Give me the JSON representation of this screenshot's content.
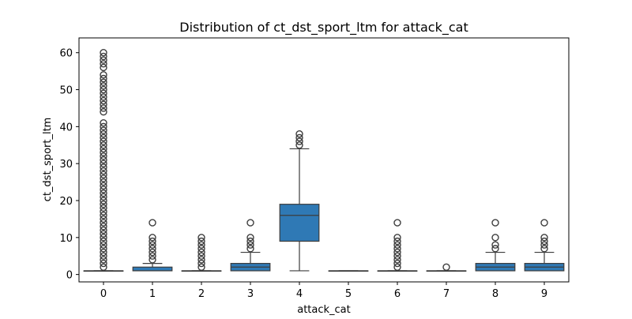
{
  "chart_data": {
    "type": "box",
    "title": "Distribution of ct_dst_sport_ltm for attack_cat",
    "xlabel": "attack_cat",
    "ylabel": "ct_dst_sport_ltm",
    "ylim": [
      -2,
      64
    ],
    "yticks": [
      0,
      10,
      20,
      30,
      40,
      50,
      60
    ],
    "categories": [
      "0",
      "1",
      "2",
      "3",
      "4",
      "5",
      "6",
      "7",
      "8",
      "9"
    ],
    "box_color": "#2f79b5",
    "line_color": "#3d3d3d",
    "boxes": [
      {
        "category": "0",
        "whisker_low": 1,
        "q1": 1,
        "median": 1,
        "q3": 1,
        "whisker_high": 1,
        "outliers": [
          2,
          3,
          4,
          5,
          6,
          7,
          8,
          9,
          10,
          11,
          12,
          13,
          14,
          15,
          16,
          17,
          18,
          19,
          20,
          21,
          22,
          23,
          24,
          25,
          26,
          27,
          28,
          29,
          30,
          31,
          32,
          33,
          34,
          35,
          36,
          37,
          38,
          39,
          40,
          41,
          44,
          45,
          46,
          47,
          48,
          49,
          50,
          51,
          52,
          53,
          54,
          56,
          57,
          58,
          59,
          60
        ]
      },
      {
        "category": "1",
        "whisker_low": 1,
        "q1": 1,
        "median": 1,
        "q3": 2,
        "whisker_high": 3,
        "outliers": [
          4,
          5,
          6,
          7,
          8,
          9,
          10,
          14
        ]
      },
      {
        "category": "2",
        "whisker_low": 1,
        "q1": 1,
        "median": 1,
        "q3": 1,
        "whisker_high": 1,
        "outliers": [
          2,
          3,
          4,
          5,
          6,
          7,
          8,
          9,
          10
        ]
      },
      {
        "category": "3",
        "whisker_low": 1,
        "q1": 1,
        "median": 2,
        "q3": 3,
        "whisker_high": 6,
        "outliers": [
          7,
          8,
          9,
          10,
          14
        ]
      },
      {
        "category": "4",
        "whisker_low": 1,
        "q1": 9,
        "median": 16,
        "q3": 19,
        "whisker_high": 34,
        "outliers": [
          35,
          36,
          37,
          38
        ]
      },
      {
        "category": "5",
        "whisker_low": 1,
        "q1": 1,
        "median": 1,
        "q3": 1,
        "whisker_high": 1,
        "outliers": []
      },
      {
        "category": "6",
        "whisker_low": 1,
        "q1": 1,
        "median": 1,
        "q3": 1,
        "whisker_high": 1,
        "outliers": [
          2,
          3,
          4,
          5,
          6,
          7,
          8,
          9,
          10,
          14
        ]
      },
      {
        "category": "7",
        "whisker_low": 1,
        "q1": 1,
        "median": 1,
        "q3": 1,
        "whisker_high": 1,
        "outliers": [
          2
        ]
      },
      {
        "category": "8",
        "whisker_low": 1,
        "q1": 1,
        "median": 2,
        "q3": 3,
        "whisker_high": 6,
        "outliers": [
          7,
          8,
          10,
          14
        ]
      },
      {
        "category": "9",
        "whisker_low": 1,
        "q1": 1,
        "median": 2,
        "q3": 3,
        "whisker_high": 6,
        "outliers": [
          7,
          8,
          9,
          10,
          14
        ]
      }
    ]
  }
}
